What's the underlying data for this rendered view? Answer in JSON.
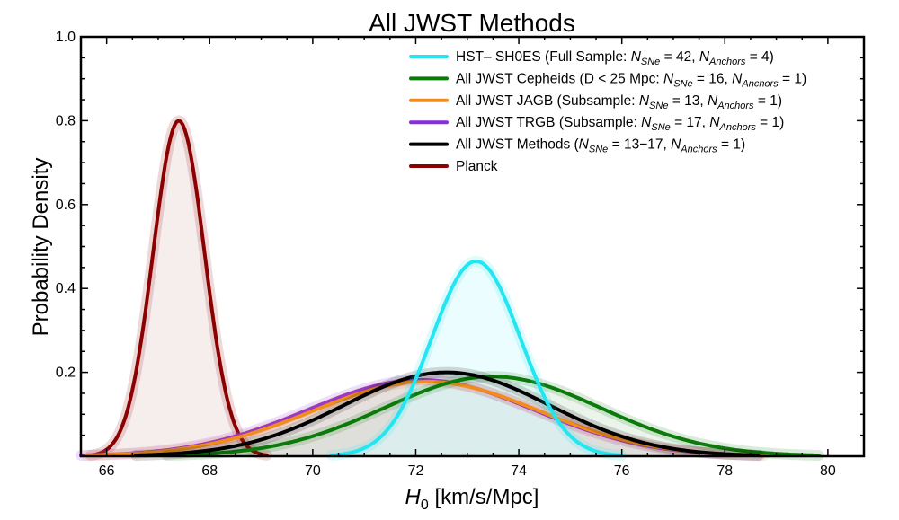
{
  "chart_data": {
    "type": "line",
    "title": "All JWST Methods",
    "xlabel": "H",
    "xlabel_subscript": "0",
    "xlabel_units": " [km/s/Mpc]",
    "ylabel": "Probability Density",
    "xlim": [
      65.5,
      80.7
    ],
    "ylim": [
      0,
      1.0
    ],
    "x_ticks": [
      66,
      68,
      70,
      72,
      74,
      76,
      78,
      80
    ],
    "y_ticks": [
      0.2,
      0.4,
      0.6,
      0.8,
      1.0
    ],
    "x_tick_labels": [
      "66",
      "68",
      "70",
      "72",
      "74",
      "76",
      "78",
      "80"
    ],
    "y_tick_labels": [
      "0.2",
      "0.4",
      "0.6",
      "0.8",
      "1.0"
    ],
    "legend_position": "top-right",
    "series": [
      {
        "name": "HST- SH0ES",
        "mean": 73.17,
        "sigma": 0.86,
        "peak": 0.465,
        "color": "#22e6f2",
        "fill": "#d7fbfd",
        "legend": [
          {
            "t": "HST– SH0ES (Full Sample: "
          },
          {
            "t": "N",
            "i": true
          },
          {
            "t": "SNe",
            "sub": true
          },
          {
            "t": " = 42, "
          },
          {
            "t": "N",
            "i": true
          },
          {
            "t": "Anchors",
            "sub": true
          },
          {
            "t": " = 4)"
          }
        ]
      },
      {
        "name": "All JWST Cepheids",
        "mean": 73.49,
        "sigma": 2.1,
        "peak": 0.19,
        "color": "#0b7a0b",
        "fill": "#d8ead8",
        "legend": [
          {
            "t": "All JWST Cepheids (D < 25 Mpc: "
          },
          {
            "t": "N",
            "i": true
          },
          {
            "t": "SNe",
            "sub": true
          },
          {
            "t": " = 16, "
          },
          {
            "t": "N",
            "i": true
          },
          {
            "t": "Anchors",
            "sub": true
          },
          {
            "t": " = 1)"
          }
        ]
      },
      {
        "name": "All JWST JAGB",
        "mean": 72.2,
        "sigma": 2.2,
        "peak": 0.178,
        "color": "#f28c1c",
        "fill": "#f6e3cf",
        "legend": [
          {
            "t": "All JWST JAGB (Subsample: "
          },
          {
            "t": "N",
            "i": true
          },
          {
            "t": "SNe",
            "sub": true
          },
          {
            "t": " = 13, "
          },
          {
            "t": "N",
            "i": true
          },
          {
            "t": "Anchors",
            "sub": true
          },
          {
            "t": " = 1)"
          }
        ]
      },
      {
        "name": "All JWST TRGB",
        "mean": 72.1,
        "sigma": 2.2,
        "peak": 0.182,
        "color": "#8a2be2",
        "fill": "#e8dcf4",
        "legend": [
          {
            "t": "All JWST TRGB (Subsample: "
          },
          {
            "t": "N",
            "i": true
          },
          {
            "t": "SNe",
            "sub": true
          },
          {
            "t": " = 17, "
          },
          {
            "t": "N",
            "i": true
          },
          {
            "t": "Anchors",
            "sub": true
          },
          {
            "t": " = 1)"
          }
        ]
      },
      {
        "name": "All JWST Methods",
        "mean": 72.6,
        "sigma": 2.0,
        "peak": 0.2,
        "color": "#000000",
        "fill": "#d6d6d6",
        "legend": [
          {
            "t": "All JWST Methods ("
          },
          {
            "t": "N",
            "i": true
          },
          {
            "t": "SNe",
            "sub": true
          },
          {
            "t": " = 13−17, "
          },
          {
            "t": "N",
            "i": true
          },
          {
            "t": "Anchors",
            "sub": true
          },
          {
            "t": " = 1)"
          }
        ]
      },
      {
        "name": "Planck",
        "mean": 67.4,
        "sigma": 0.5,
        "peak": 0.8,
        "color": "#8b0000",
        "fill": "#eedcdc",
        "legend": [
          {
            "t": "Planck"
          }
        ]
      }
    ]
  }
}
